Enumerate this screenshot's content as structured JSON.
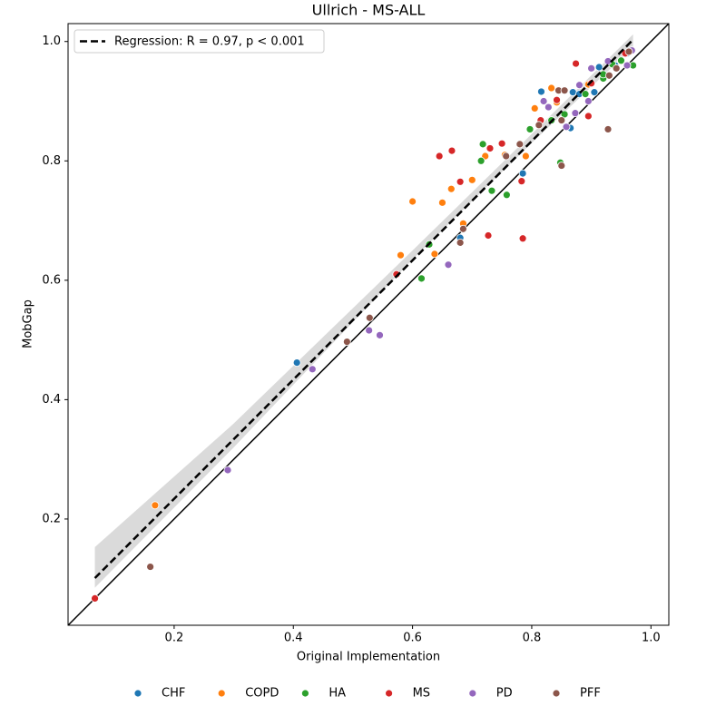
{
  "chart_data": {
    "type": "scatter",
    "title": "Ullrich - MS-ALL",
    "x_label": "Original Implementation",
    "y_label": "MobGap",
    "xlim": [
      0.022,
      1.03
    ],
    "ylim": [
      0.022,
      1.03
    ],
    "xticks": [
      0.2,
      0.4,
      0.6,
      0.8,
      {
        "value": 1,
        "label": "1.0"
      }
    ],
    "yticks": [
      0.2,
      0.4,
      0.6,
      0.8,
      {
        "value": 1,
        "label": "1.0"
      }
    ],
    "regression": {
      "name": "Regression: R = 0.97, p < 0.001",
      "color": "#000000",
      "x": [
        0.067,
        0.97
      ],
      "y": [
        0.101,
        1.003
      ],
      "band_x": [
        0.067,
        0.3,
        0.6,
        0.8,
        0.97
      ],
      "band_upper": [
        0.153,
        0.36,
        0.65,
        0.845,
        1.012
      ],
      "band_lower": [
        0.085,
        0.32,
        0.635,
        0.83,
        0.99
      ]
    },
    "series": [
      {
        "name": "CHF",
        "color": "#1f77b4",
        "x": [
          0.406,
          0.816,
          0.785,
          0.68,
          0.865,
          0.869,
          0.905,
          0.913,
          0.88,
          0.94,
          0.96
        ],
        "y": [
          0.462,
          0.916,
          0.779,
          0.671,
          0.855,
          0.915,
          0.915,
          0.957,
          0.912,
          0.96,
          0.98
        ]
      },
      {
        "name": "COPD",
        "color": "#ff7f0e",
        "x": [
          0.168,
          0.6,
          0.65,
          0.665,
          0.7,
          0.58,
          0.637,
          0.685,
          0.722,
          0.79,
          0.805,
          0.833,
          0.842,
          0.755,
          0.895
        ],
        "y": [
          0.223,
          0.732,
          0.73,
          0.753,
          0.768,
          0.642,
          0.644,
          0.695,
          0.808,
          0.808,
          0.888,
          0.922,
          0.898,
          0.81,
          0.928
        ]
      },
      {
        "name": "HA",
        "color": "#2ca02c",
        "x": [
          0.615,
          0.628,
          0.715,
          0.718,
          0.733,
          0.758,
          0.797,
          0.833,
          0.848,
          0.855,
          0.89,
          0.92,
          0.935,
          0.95,
          0.97,
          0.92
        ],
        "y": [
          0.603,
          0.66,
          0.8,
          0.828,
          0.75,
          0.743,
          0.853,
          0.868,
          0.797,
          0.878,
          0.912,
          0.938,
          0.962,
          0.968,
          0.96,
          0.945
        ]
      },
      {
        "name": "MS",
        "color": "#d62728",
        "x": [
          0.067,
          0.573,
          0.645,
          0.666,
          0.68,
          0.727,
          0.73,
          0.75,
          0.783,
          0.785,
          0.815,
          0.842,
          0.874,
          0.895,
          0.9,
          0.957
        ],
        "y": [
          0.067,
          0.61,
          0.808,
          0.817,
          0.765,
          0.675,
          0.821,
          0.829,
          0.766,
          0.67,
          0.868,
          0.902,
          0.963,
          0.875,
          0.93,
          0.98
        ]
      },
      {
        "name": "PD",
        "color": "#9467bd",
        "x": [
          0.29,
          0.432,
          0.527,
          0.545,
          0.66,
          0.82,
          0.828,
          0.858,
          0.873,
          0.88,
          0.895,
          0.9,
          0.928,
          0.96,
          0.968
        ],
        "y": [
          0.282,
          0.451,
          0.516,
          0.508,
          0.626,
          0.9,
          0.89,
          0.857,
          0.88,
          0.927,
          0.9,
          0.955,
          0.967,
          0.96,
          0.985
        ]
      },
      {
        "name": "PFF",
        "color": "#8c564b",
        "x": [
          0.16,
          0.49,
          0.528,
          0.68,
          0.685,
          0.757,
          0.78,
          0.812,
          0.845,
          0.85,
          0.85,
          0.855,
          0.93,
          0.928,
          0.942,
          0.963
        ],
        "y": [
          0.12,
          0.497,
          0.537,
          0.663,
          0.686,
          0.808,
          0.828,
          0.86,
          0.918,
          0.792,
          0.868,
          0.918,
          0.943,
          0.853,
          0.955,
          0.983
        ]
      }
    ]
  }
}
